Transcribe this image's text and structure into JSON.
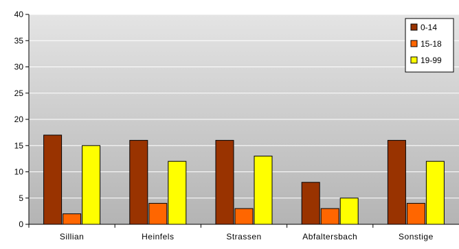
{
  "chart_data": {
    "type": "bar",
    "categories": [
      "Sillian",
      "Heinfels",
      "Strassen",
      "Abfaltersbach",
      "Sonstige"
    ],
    "series": [
      {
        "name": "0-14",
        "values": [
          17,
          16,
          16,
          8,
          16
        ],
        "color": "#993300"
      },
      {
        "name": "15-18",
        "values": [
          2,
          4,
          3,
          3,
          4
        ],
        "color": "#ff6600"
      },
      {
        "name": "19-99",
        "values": [
          15,
          12,
          13,
          5,
          12
        ],
        "color": "#ffff00"
      }
    ],
    "title": "",
    "xlabel": "",
    "ylabel": "",
    "ylim": [
      0,
      40
    ],
    "yticks": [
      0,
      5,
      10,
      15,
      20,
      25,
      30,
      35,
      40
    ],
    "grid": true,
    "legend_position": "top-right",
    "background": "gradient-gray"
  }
}
